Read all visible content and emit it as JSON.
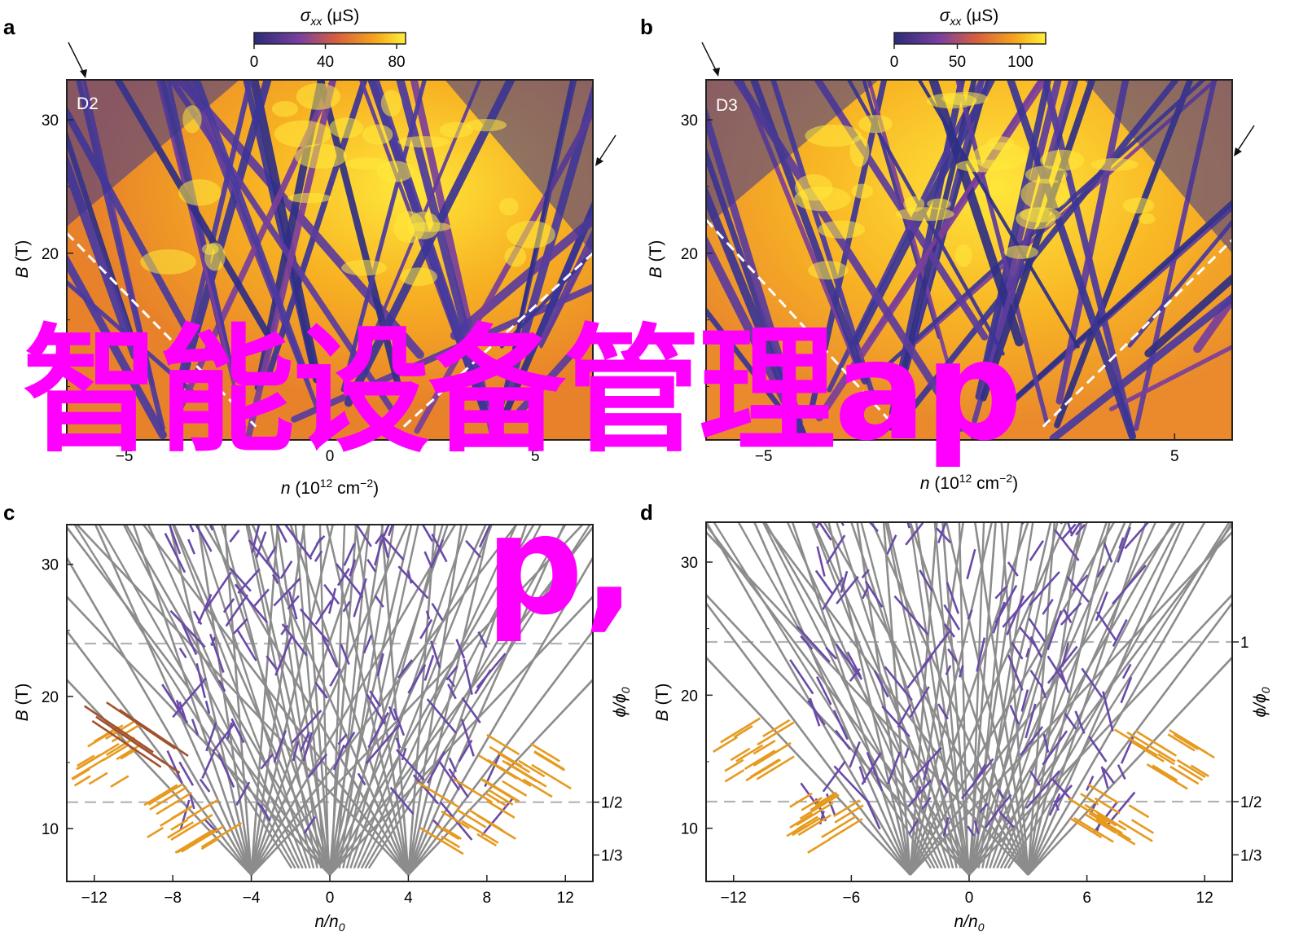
{
  "chart_data": [
    {
      "type": "heatmap",
      "panel": "a",
      "sample": "D2",
      "colorbar": {
        "title_symbol": "σ",
        "title_sub": "xx",
        "title_unit": " (μS)",
        "ticks": [
          "0",
          "40",
          "80"
        ],
        "range": [
          0,
          85
        ]
      },
      "xlabel_symbol": "n",
      "xlabel_unit": " (10",
      "xlabel_exp": "12",
      "xlabel_tail": " cm",
      "xlabel_exp2": "−2",
      "xlabel_close": ")",
      "ylabel_symbol": "B",
      "ylabel_unit": " (T)",
      "xlim": [
        -6.4,
        6.4
      ],
      "ylim": [
        6,
        33
      ],
      "xticks": [
        "−5",
        "0",
        "5"
      ],
      "yticks": [
        "30",
        "20"
      ],
      "dashed_boundary": "white dashed V from (−6.4, 21.5) to (−1.8, 7) and (1.8, 7) to (6.4, 20)",
      "arrows": [
        "top-left corner",
        "right edge near B = 26"
      ]
    },
    {
      "type": "heatmap",
      "panel": "b",
      "sample": "D3",
      "colorbar": {
        "title_symbol": "σ",
        "title_sub": "xx",
        "title_unit": " (μS)",
        "ticks": [
          "0",
          "50",
          "100"
        ],
        "range": [
          0,
          120
        ]
      },
      "xlabel_symbol": "n",
      "xlabel_unit": " (10",
      "xlabel_exp": "12",
      "xlabel_tail": " cm",
      "xlabel_exp2": "−2",
      "xlabel_close": ")",
      "ylabel_symbol": "B",
      "ylabel_unit": " (T)",
      "xlim": [
        -6.4,
        6.4
      ],
      "ylim": [
        6,
        33
      ],
      "xticks": [
        "−5",
        "5"
      ],
      "yticks": [
        "30",
        "20"
      ],
      "dashed_boundary": "white dashed V from (−6.4, 22.5) to (−1.8, 7) and (1.8, 7) to (6.4, 21)",
      "arrows": [
        "top-left corner",
        "right edge near B = 27"
      ]
    },
    {
      "type": "line",
      "panel": "c",
      "description_series": [
        "gray Landau fan lines",
        "purple fractal segments",
        "orange segments",
        "brown segments"
      ],
      "xlabel_symbol": "n/n",
      "xlabel_sub": "0",
      "ylabel_symbol": "B",
      "ylabel_unit": " (T)",
      "y2label_symbol": "ϕ/ϕ",
      "y2label_sub": "0",
      "xlim": [
        -13.4,
        13.4
      ],
      "ylim": [
        6,
        33
      ],
      "xticks": [
        "−12",
        "−8",
        "−4",
        "0",
        "4",
        "8",
        "12"
      ],
      "yticks": [
        "30",
        "20",
        "10"
      ],
      "y2ticks": [
        {
          "label": "1/2",
          "B": 12
        },
        {
          "label": "1/3",
          "B": 8
        }
      ],
      "hlines_dashed_B": [
        24,
        12
      ],
      "fan_origins": [
        -4,
        0,
        4
      ],
      "fan_slopes_T": [
        1.6,
        2.0,
        2.6,
        3.4,
        4.5,
        6.5,
        10,
        20
      ]
    },
    {
      "type": "line",
      "panel": "d",
      "description_series": [
        "gray Landau fan lines",
        "purple fractal segments",
        "orange segments"
      ],
      "xlabel_symbol": "n/n",
      "xlabel_sub": "0",
      "ylabel_symbol": "B",
      "ylabel_unit": " (T)",
      "y2label_symbol": "ϕ/ϕ",
      "y2label_sub": "0",
      "xlim": [
        -13.4,
        13.4
      ],
      "ylim": [
        6,
        33
      ],
      "xticks": [
        "−12",
        "−6",
        "0",
        "6",
        "12"
      ],
      "yticks": [
        "30",
        "20",
        "10"
      ],
      "y2ticks": [
        {
          "label": "1",
          "B": 24
        },
        {
          "label": "1/2",
          "B": 12
        },
        {
          "label": "1/3",
          "B": 8
        }
      ],
      "hlines_dashed_B": [
        24,
        12
      ],
      "fan_origins": [
        -3,
        0,
        3
      ],
      "fan_slopes_T": [
        1.6,
        2.0,
        2.6,
        3.4,
        4.5,
        6.5,
        10,
        20
      ]
    }
  ],
  "overlay": {
    "line1": "智能设备管理ap",
    "line2": "p,"
  }
}
